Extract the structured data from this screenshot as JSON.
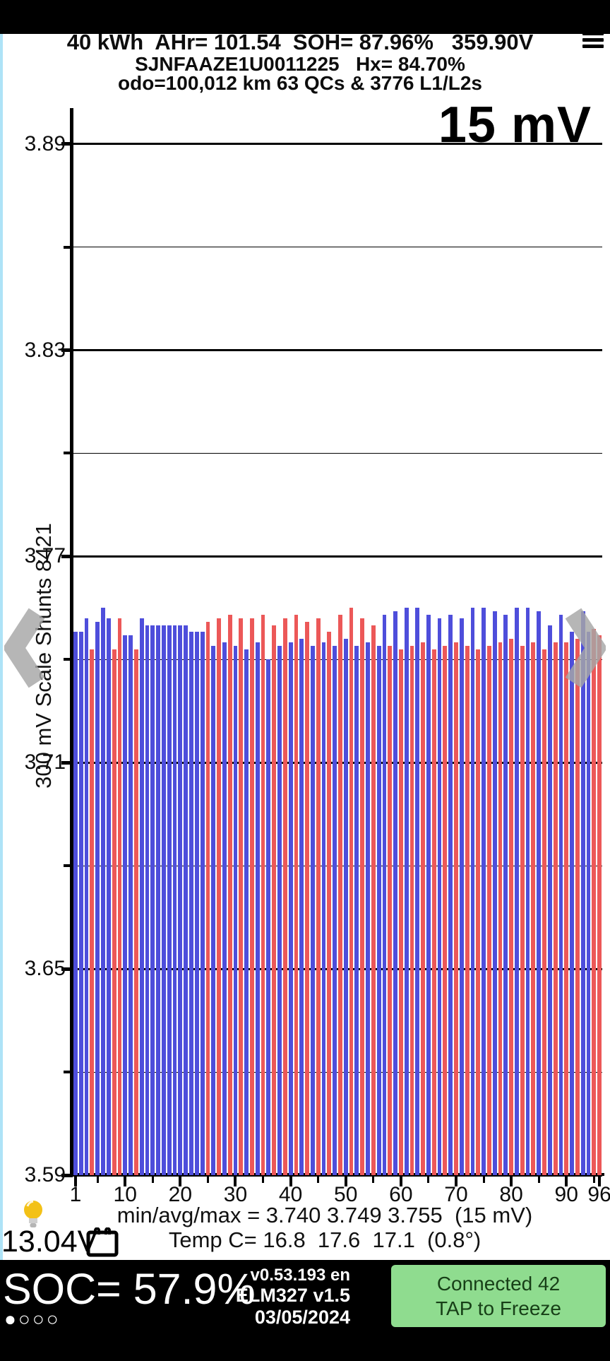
{
  "header": {
    "stats_line": "40 kWh  AHr= 101.54  SOH= 87.96%   359.90V",
    "vin_line": "SJNFAAZE1U0011225   Hx= 84.70%",
    "odo_line": "odo=100,012 km 63 QCs & 3776 L1/L2s"
  },
  "chart": {
    "range_label": "15 mV",
    "axis_title": "300 mV Scale  Shunts 8421"
  },
  "chart_data": {
    "type": "bar",
    "title": "15 mV",
    "ylabel": "300 mV Scale  Shunts 8421",
    "xlabel": "",
    "ylim": [
      3.59,
      3.9
    ],
    "grid": true,
    "y_ticks": [
      {
        "v": 3.89,
        "label": "3.89"
      },
      {
        "v": 3.83,
        "label": "3.83"
      },
      {
        "v": 3.77,
        "label": "3.77"
      },
      {
        "v": 3.71,
        "label": "3.71"
      },
      {
        "v": 3.65,
        "label": "3.65"
      },
      {
        "v": 3.59,
        "label": "3.59"
      }
    ],
    "y_minor": [
      3.86,
      3.8,
      3.74,
      3.68,
      3.62
    ],
    "x_labeled_ticks": [
      {
        "v": 1,
        "label": "1"
      },
      {
        "v": 10,
        "label": "10"
      },
      {
        "v": 20,
        "label": "20"
      },
      {
        "v": 30,
        "label": "30"
      },
      {
        "v": 40,
        "label": "40"
      },
      {
        "v": 50,
        "label": "50"
      },
      {
        "v": 60,
        "label": "60"
      },
      {
        "v": 70,
        "label": "70"
      },
      {
        "v": 80,
        "label": "80"
      },
      {
        "v": 90,
        "label": "90"
      },
      {
        "v": 96,
        "label": "96"
      }
    ],
    "x_minor_ticks": [
      5,
      15,
      25,
      35,
      45,
      55,
      65,
      75,
      85,
      95
    ],
    "values": [
      3.748,
      3.748,
      3.752,
      3.743,
      3.751,
      3.755,
      3.752,
      3.743,
      3.752,
      3.747,
      3.747,
      3.743,
      3.752,
      3.75,
      3.75,
      3.75,
      3.75,
      3.75,
      3.75,
      3.75,
      3.75,
      3.748,
      3.748,
      3.748,
      3.751,
      3.744,
      3.752,
      3.745,
      3.753,
      3.744,
      3.752,
      3.743,
      3.752,
      3.745,
      3.753,
      3.74,
      3.75,
      3.744,
      3.752,
      3.745,
      3.753,
      3.746,
      3.751,
      3.744,
      3.752,
      3.745,
      3.748,
      3.744,
      3.753,
      3.746,
      3.755,
      3.744,
      3.752,
      3.745,
      3.75,
      3.744,
      3.753,
      3.744,
      3.754,
      3.743,
      3.755,
      3.744,
      3.755,
      3.745,
      3.753,
      3.743,
      3.752,
      3.744,
      3.753,
      3.745,
      3.752,
      3.744,
      3.755,
      3.743,
      3.755,
      3.744,
      3.754,
      3.745,
      3.753,
      3.746,
      3.755,
      3.744,
      3.755,
      3.745,
      3.754,
      3.743,
      3.75,
      3.745,
      3.753,
      3.745,
      3.748,
      3.746,
      3.754,
      3.748,
      3.749,
      3.747
    ],
    "shunt": [
      0,
      0,
      0,
      1,
      0,
      0,
      0,
      1,
      1,
      0,
      0,
      1,
      0,
      0,
      0,
      0,
      0,
      0,
      0,
      0,
      0,
      0,
      0,
      0,
      1,
      0,
      1,
      0,
      1,
      0,
      1,
      0,
      1,
      0,
      1,
      0,
      1,
      0,
      1,
      0,
      1,
      0,
      1,
      0,
      1,
      0,
      1,
      0,
      1,
      0,
      1,
      0,
      1,
      0,
      1,
      0,
      0,
      1,
      0,
      1,
      0,
      1,
      0,
      1,
      0,
      1,
      0,
      1,
      0,
      1,
      0,
      1,
      0,
      1,
      0,
      1,
      0,
      1,
      0,
      1,
      0,
      1,
      0,
      1,
      0,
      1,
      0,
      1,
      0,
      1,
      0,
      1,
      0,
      0,
      1,
      1
    ],
    "summary": {
      "min": 3.74,
      "avg": 3.749,
      "max": 3.755,
      "spread_mv": 15
    }
  },
  "footer": {
    "min_avg_max_line": "min/avg/max = 3.740 3.749 3.755  (15 mV)",
    "temp_line": "Temp C= 16.8  17.6  17.1  (0.8°)",
    "aux_battery_voltage": "13.04V"
  },
  "bottom_bar": {
    "soc": "SOC= 57.9%",
    "page_dots": "●○○○",
    "app_version": "v0.53.193 en",
    "adapter": "ELM327 v1.5",
    "date": "03/05/2024",
    "connection_button": {
      "line1": "Connected 42",
      "line2": "TAP to Freeze"
    }
  },
  "colors": {
    "bar_blue": "#4e4edb",
    "bar_red": "#ec5858",
    "button_green": "#8fdc8f",
    "button_text": "#173f17",
    "chevron_gray": "#a6a6a6",
    "edge_strip_blue": "#aee3f7",
    "bulb_yellow": "#f3c117"
  }
}
